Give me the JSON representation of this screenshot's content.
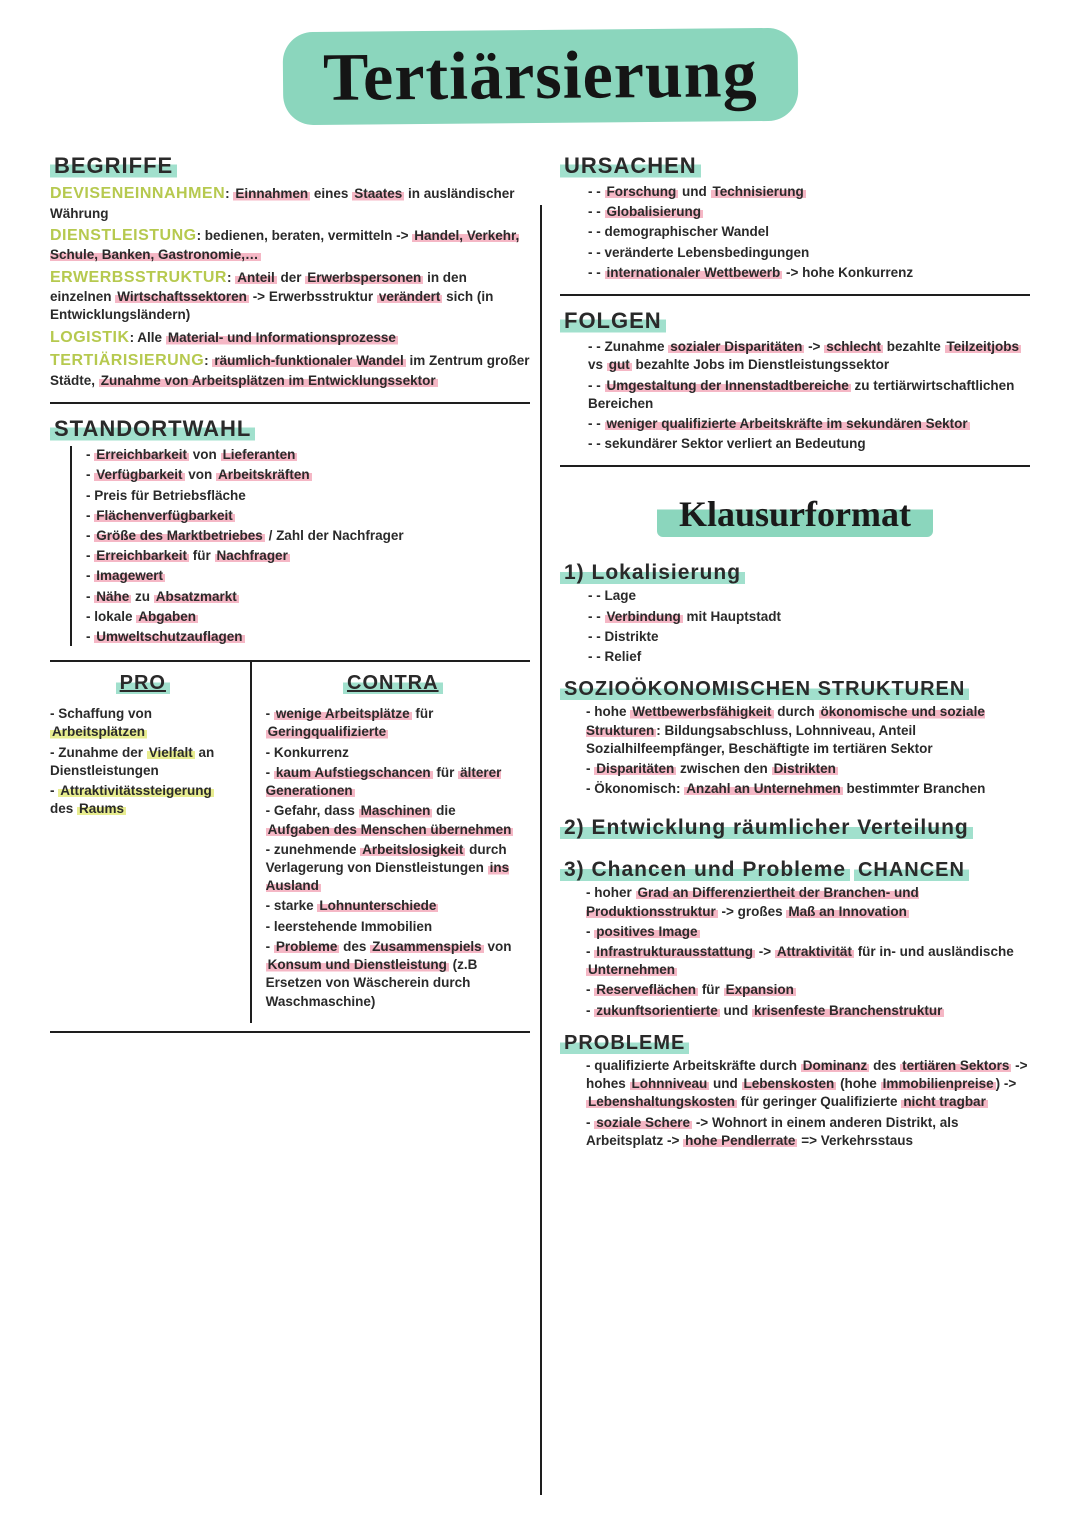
{
  "colors": {
    "teal": "#8bd6bd",
    "teal_light": "#a1e0cd",
    "pink": "#f5b7c5",
    "yellow": "#e8ed90",
    "olive": "#b6c94f",
    "text": "#2a2a2a",
    "rule": "#1e1e1e",
    "bg": "#ffffff"
  },
  "typography": {
    "title_font": "Brush Script MT",
    "title_size_pt": 68,
    "heading_font": "Arial Narrow",
    "heading_size_pt": 22,
    "body_font": "Trebuchet MS",
    "body_size_pt": 13.5,
    "body_weight": "bold"
  },
  "title": "Tertiärsierung",
  "left": {
    "begriffe": {
      "heading": "Begriffe",
      "defs": [
        {
          "term": "Deviseneinnahmen",
          "html": "<span class='hl-pink'>Einnahmen</span> eines <span class='hl-pink'>Staates</span> in ausländischer Währung"
        },
        {
          "term": "Dienstleistung",
          "html": "bedienen, beraten, vermitteln -> <span class='hl-pink'>Handel, Verkehr, Schule, Banken, Gastronomie,…</span>"
        },
        {
          "term": "Erwerbsstruktur",
          "html": "<span class='hl-pink'>Anteil</span> der <span class='hl-pink'>Erwerbspersonen</span> in den einzelnen <span class='hl-pink'>Wirtschaftssektoren</span> -> Erwerbsstruktur <span class='hl-pink'>verändert</span> sich (in Entwicklungsländern)"
        },
        {
          "term": "Logistik",
          "html": "Alle <span class='hl-pink'>Material- und Informationsprozesse</span>"
        },
        {
          "term": "Tertiärisierung",
          "html": "<span class='hl-pink'>räumlich-funktionaler Wandel</span> im Zentrum großer Städte, <span class='hl-pink'>Zunahme von Arbeitsplätzen im Entwicklungssektor</span>"
        }
      ]
    },
    "standortwahl": {
      "heading": "Standortwahl",
      "items": [
        "<span class='hl-pink'>Erreichbarkeit</span> von <span class='hl-pink'>Lieferanten</span>",
        "<span class='hl-pink'>Verfügbarkeit</span> von <span class='hl-pink'>Arbeitskräften</span>",
        "Preis für Betriebsfläche",
        "<span class='hl-pink'>Flächenverfügbarkeit</span>",
        "<span class='hl-pink'>Größe des Marktbetriebes</span> / Zahl der Nachfrager",
        "<span class='hl-pink'>Erreichbarkeit</span> für <span class='hl-pink'>Nachfrager</span>",
        "<span class='hl-pink'>Imagewert</span>",
        "<span class='hl-pink'>Nähe</span> zu <span class='hl-pink'>Absatzmarkt</span>",
        "lokale <span class='hl-pink'>Abgaben</span>",
        "<span class='hl-pink'>Umweltschutzauflagen</span>"
      ]
    },
    "procon": {
      "pro_heading": "Pro",
      "contra_heading": "Contra",
      "pro": [
        "Schaffung von <span class='hl-yellow'>Arbeitsplätzen</span>",
        "Zunahme der <span class='hl-yellow'>Vielfalt</span> an Dienstleistungen",
        "<span class='hl-yellow'>Attraktivitätssteigerung</span> des <span class='hl-yellow'>Raums</span>"
      ],
      "contra": [
        "<span class='hl-pink'>wenige Arbeitsplätze</span> für <span class='hl-pink'>Geringqualifizierte</span>",
        "Konkurrenz",
        "<span class='hl-pink'>kaum Aufstiegschancen</span> für <span class='hl-pink'>älterer Generationen</span>",
        "Gefahr, dass <span class='hl-pink'>Maschinen</span> die <span class='hl-pink'>Aufgaben des Menschen übernehmen</span>",
        "zunehmende <span class='hl-pink'>Arbeitslosigkeit</span> durch Verlagerung von Dienstleistungen <span class='hl-pink'>ins Ausland</span>",
        "starke <span class='hl-pink'>Lohnunterschiede</span>",
        "leerstehende Immobilien",
        "<span class='hl-pink'>Probleme</span> des <span class='hl-pink'>Zusammenspiels</span> von <span class='hl-pink'>Konsum und Dienstleistung</span> (z.B Ersetzen von Wäscherein durch Waschmaschine)"
      ]
    }
  },
  "right": {
    "ursachen": {
      "heading": "Ursachen",
      "items": [
        "<span class='hl-pink'>Forschung</span> und <span class='hl-pink'>Technisierung</span>",
        "<span class='hl-pink'>Globalisierung</span>",
        "demographischer Wandel",
        "veränderte Lebensbedingungen",
        "<span class='hl-pink'>internationaler Wettbewerb</span> -> hohe Konkurrenz"
      ]
    },
    "folgen": {
      "heading": "Folgen",
      "items": [
        "Zunahme <span class='hl-pink'>sozialer Disparitäten</span> -> <span class='hl-pink'>schlecht</span> bezahlte <span class='hl-pink'>Teilzeitjobs</span> vs <span class='hl-pink'>gut</span> bezahlte Jobs im Dienstleistungssektor",
        "<span class='hl-pink'>Umgestaltung der Innenstadtbereiche</span> zu tertiärwirtschaftlichen Bereichen",
        "<span class='hl-pink'>weniger qualifizierte Arbeitskräfte im sekundären Sektor</span>",
        "sekundärer Sektor verliert an Bedeutung"
      ]
    },
    "klausur_title": "Klausurformat",
    "k1": {
      "heading": "1) Lokalisierung",
      "items": [
        "Lage",
        "<span class='hl-pink'>Verbindung</span> mit Hauptstadt",
        "Distrikte",
        "Relief"
      ],
      "sub_heading": "Sozioökonomischen Strukturen",
      "sub_items": [
        "hohe <span class='hl-pink'>Wettbewerbsfähigkeit</span> durch <span class='hl-pink'>ökonomische und soziale Strukturen</span>: Bildungsabschluss, Lohnniveau, Anteil Sozialhilfeempfänger, Beschäftigte im tertiären Sektor",
        "<span class='hl-pink'>Disparitäten</span> zwischen den <span class='hl-pink'>Distrikten</span>",
        "Ökonomisch: <span class='hl-pink'>Anzahl an Unternehmen</span> bestimmter Branchen"
      ]
    },
    "k2": {
      "heading": "2) Entwicklung räumlicher Verteilung"
    },
    "k3": {
      "heading": "3) Chancen und Probleme",
      "chancen_heading": "Chancen",
      "chancen": [
        "hoher <span class='hl-pink'>Grad an Differenziertheit der Branchen- und Produktionsstruktur</span> -> großes <span class='hl-pink'>Maß an Innovation</span>",
        "<span class='hl-pink'>positives Image</span>",
        "<span class='hl-pink'>Infrastrukturausstattung</span> -> <span class='hl-pink'>Attraktivität</span> für in- und ausländische <span class='hl-pink'>Unternehmen</span>",
        "<span class='hl-pink'>Reserveflächen</span> für <span class='hl-pink'>Expansion</span>",
        "<span class='hl-pink'>zukunftsorientierte</span> und <span class='hl-pink'>krisenfeste Branchenstruktur</span>"
      ],
      "probleme_heading": "Probleme",
      "probleme": [
        "qualifizierte Arbeitskräfte durch <span class='hl-pink'>Dominanz</span> des <span class='hl-pink'>tertiären Sektors</span> -> hohes <span class='hl-pink'>Lohnniveau</span> und <span class='hl-pink'>Lebenskosten</span> (hohe <span class='hl-pink'>Immobilienpreise</span>) -> <span class='hl-pink'>Lebenshaltungskosten</span> für geringer Qualifizierte <span class='hl-pink'>nicht tragbar</span>",
        "<span class='hl-pink'>soziale Schere</span> -> Wohnort in einem anderen Distrikt, als Arbeitsplatz -> <span class='hl-pink'>hohe Pendlerrate</span> => Verkehrsstaus"
      ]
    }
  }
}
